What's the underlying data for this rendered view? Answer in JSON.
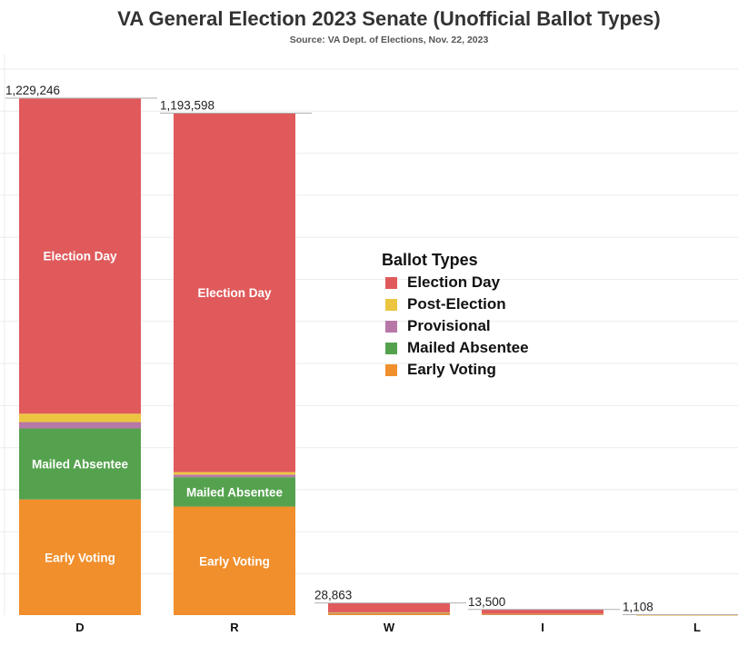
{
  "title": "VA General Election 2023 Senate (Unofficial Ballot Types)",
  "subtitle": "Source: VA Dept. of Elections, Nov. 22, 2023",
  "colors": {
    "Election Day": "#e05a5b",
    "Post-Election": "#ecc641",
    "Provisional": "#b878a7",
    "Mailed Absentee": "#55a24e",
    "Early Voting": "#f08f2c"
  },
  "legend": {
    "title": "Ballot Types",
    "items": [
      "Election Day",
      "Post-Election",
      "Provisional",
      "Mailed Absentee",
      "Early Voting"
    ]
  },
  "chart_data": {
    "type": "bar",
    "stacked": true,
    "title": "VA General Election 2023 Senate (Unofficial Ballot Types)",
    "subtitle": "Source: VA Dept. of Elections, Nov. 22, 2023",
    "categories": [
      "D",
      "R",
      "W",
      "I",
      "L"
    ],
    "totals": [
      1229246,
      1193598,
      28863,
      13500,
      1108
    ],
    "total_labels": [
      "1,229,246",
      "1,193,598",
      "28,863",
      "13,500",
      "1,108"
    ],
    "series": [
      {
        "name": "Early Voting",
        "values": [
          275000,
          258000,
          3500,
          1600,
          150
        ]
      },
      {
        "name": "Mailed Absentee",
        "values": [
          169000,
          70000,
          1300,
          600,
          50
        ]
      },
      {
        "name": "Provisional",
        "values": [
          15000,
          6000,
          300,
          150,
          10
        ]
      },
      {
        "name": "Post-Election",
        "values": [
          20000,
          6000,
          1500,
          700,
          20
        ]
      },
      {
        "name": "Election Day",
        "values": [
          750246,
          853598,
          22263,
          10450,
          878
        ]
      }
    ],
    "segment_labels": {
      "Election Day": [
        "Election Day",
        "Election Day",
        "",
        "",
        ""
      ],
      "Mailed Absentee": [
        "Mailed Absentee",
        "Mailed Absentee",
        "",
        "",
        ""
      ],
      "Early Voting": [
        "Early Voting",
        "Early Voting",
        "",
        "",
        ""
      ]
    },
    "ylim": [
      0,
      1330000
    ],
    "grid": true,
    "legend_position": "right-center",
    "axes_shown": false
  }
}
